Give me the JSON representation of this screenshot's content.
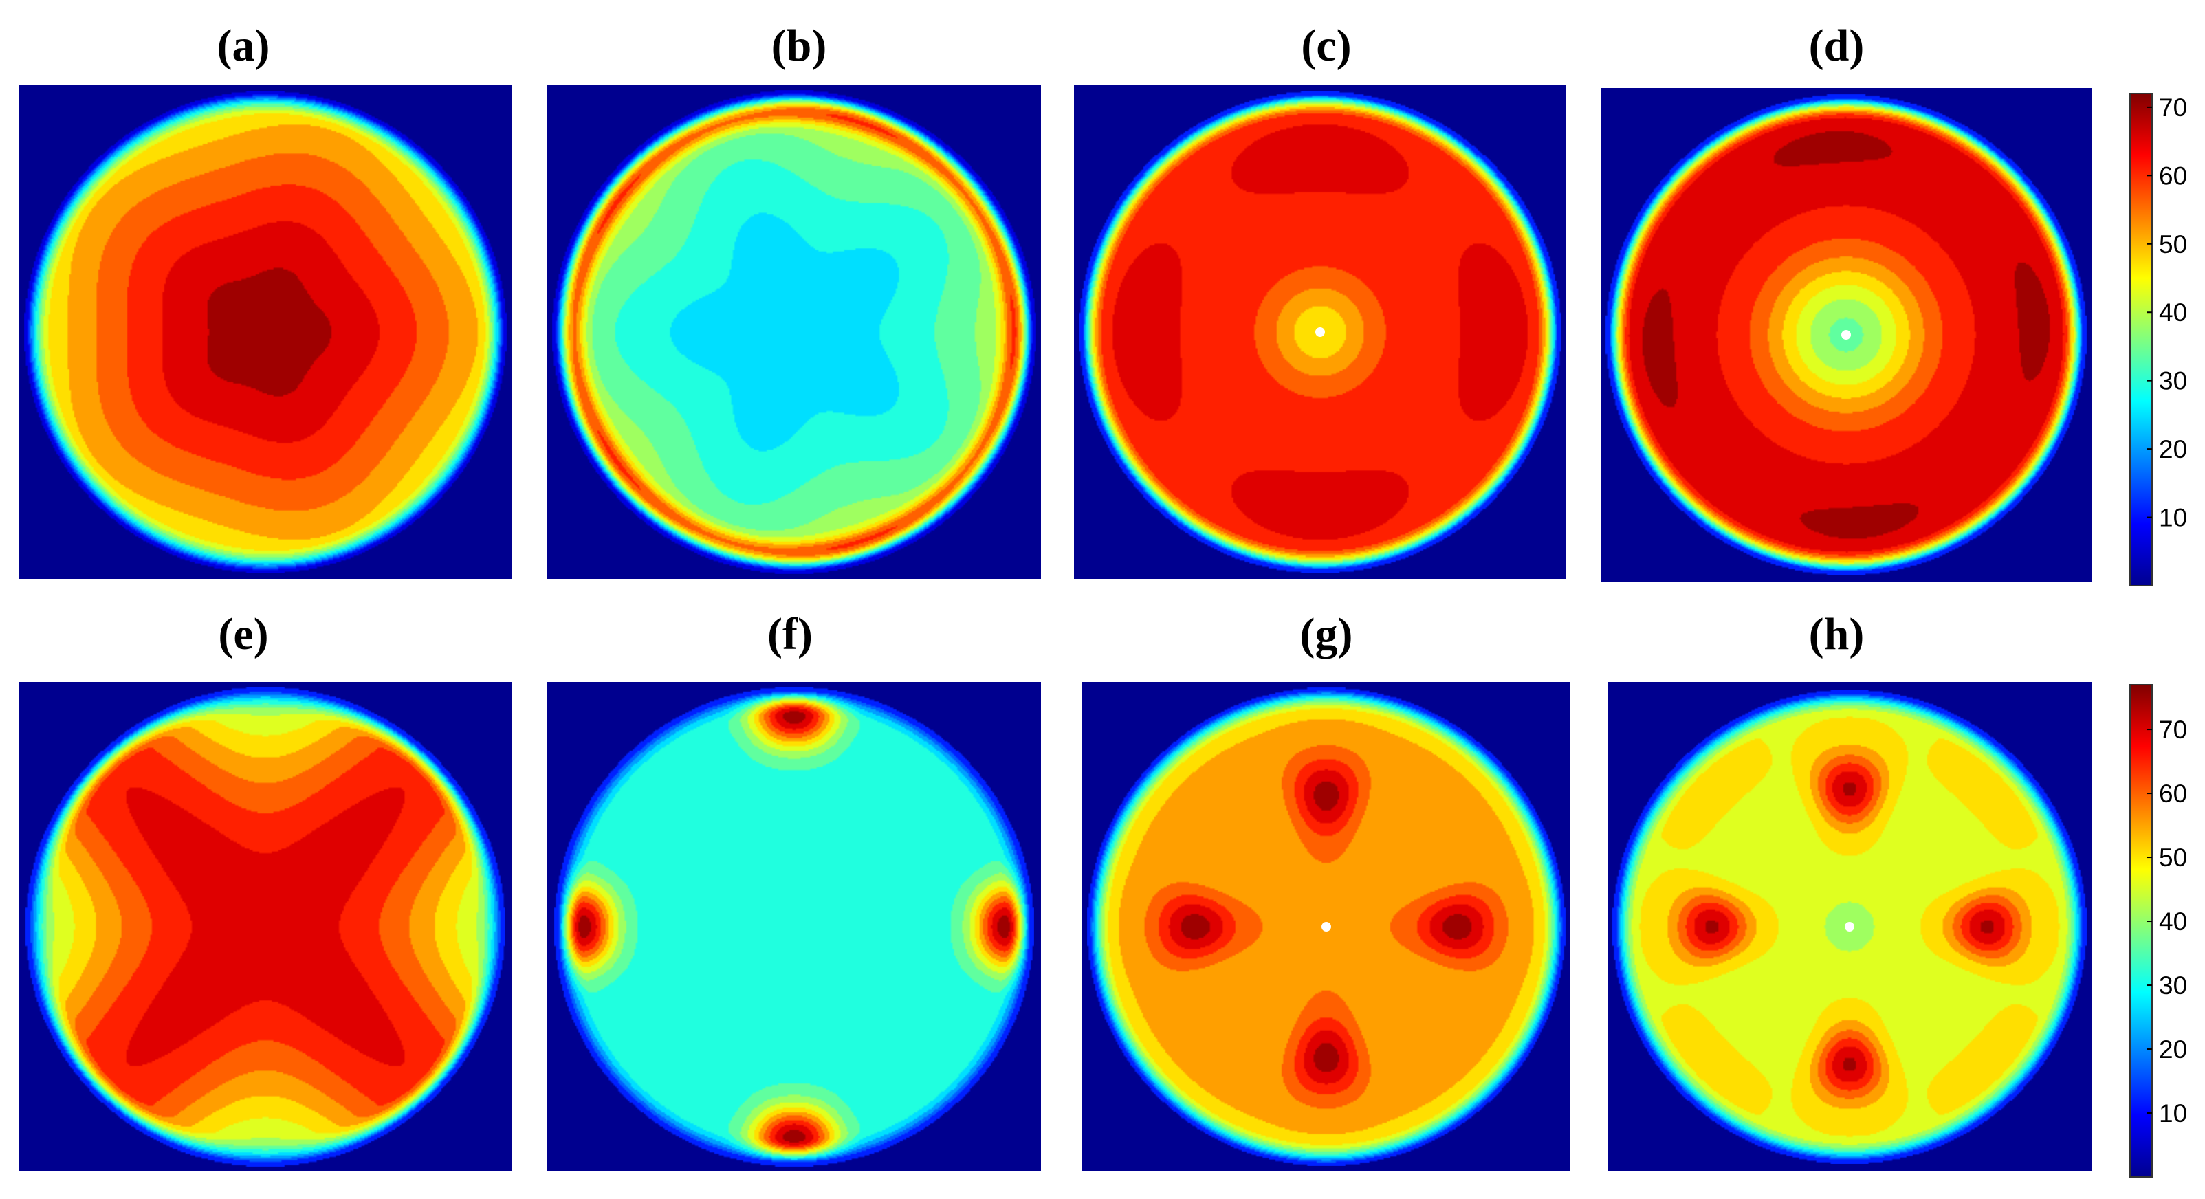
{
  "chart_data": {
    "type": "heatmap",
    "colormap": "jet",
    "background_color": "#00008f",
    "panels": [
      {
        "label": "(a)",
        "pattern": "centered"
      },
      {
        "label": "(b)",
        "pattern": "ring"
      },
      {
        "label": "(c)",
        "pattern": "flat-center-dip",
        "marker": "center-dot"
      },
      {
        "label": "(d)",
        "pattern": "deep-center-dip",
        "marker": "center-dot"
      },
      {
        "label": "(e)",
        "pattern": "four-lobe-star"
      },
      {
        "label": "(f)",
        "pattern": "four-edge-lobes"
      },
      {
        "label": "(g)",
        "pattern": "four-inner-lobes",
        "marker": "center-dot"
      },
      {
        "label": "(h)",
        "pattern": "four-lobes-warm-center",
        "marker": "center-dot"
      }
    ],
    "colorbars": [
      {
        "row": 1,
        "ticks": [
          "10",
          "20",
          "30",
          "40",
          "50",
          "60",
          "70"
        ],
        "range": [
          0,
          72
        ]
      },
      {
        "row": 2,
        "ticks": [
          "10",
          "20",
          "30",
          "40",
          "50",
          "60",
          "70"
        ],
        "range": [
          0,
          77
        ]
      }
    ]
  }
}
